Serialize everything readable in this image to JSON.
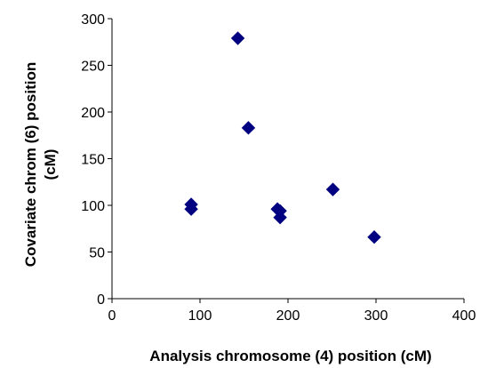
{
  "chart_data": {
    "type": "scatter",
    "title": "",
    "xlabel": "Analysis chromosome (4) position (cM)",
    "ylabel_lines": [
      "Covariate chrom (6) position",
      "(cM)"
    ],
    "xlim": [
      0,
      400
    ],
    "ylim": [
      0,
      300
    ],
    "x_ticks": [
      0,
      100,
      200,
      300,
      400
    ],
    "y_ticks": [
      0,
      50,
      100,
      150,
      200,
      250,
      300
    ],
    "grid": false,
    "legend": "none",
    "marker": "diamond",
    "marker_color": "#000080",
    "series": [
      {
        "points": [
          {
            "x": 90,
            "y": 101
          },
          {
            "x": 90,
            "y": 96
          },
          {
            "x": 143,
            "y": 279
          },
          {
            "x": 155,
            "y": 183
          },
          {
            "x": 188,
            "y": 96
          },
          {
            "x": 191,
            "y": 94
          },
          {
            "x": 191,
            "y": 87
          },
          {
            "x": 251,
            "y": 117
          },
          {
            "x": 298,
            "y": 66
          }
        ]
      }
    ]
  }
}
